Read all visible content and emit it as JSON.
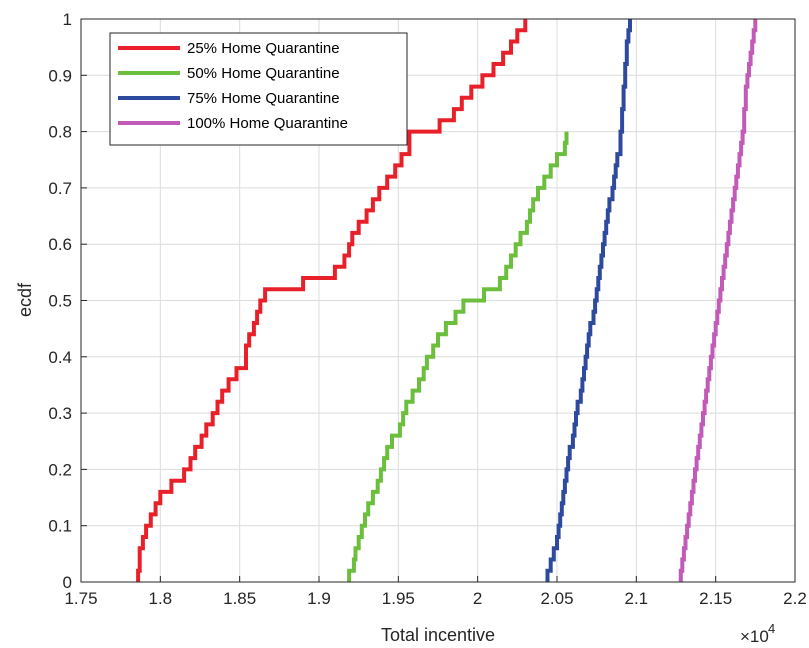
{
  "chart_data": {
    "type": "line",
    "step": true,
    "xlabel": "Total incentive",
    "ylabel": "ecdf",
    "x_exponent_label": "×10",
    "x_exponent_power": "4",
    "xlim": [
      1.75,
      2.2
    ],
    "ylim": [
      0,
      1
    ],
    "xticks": [
      1.75,
      1.8,
      1.85,
      1.9,
      1.95,
      2,
      2.05,
      2.1,
      2.15,
      2.2
    ],
    "xtick_labels": [
      "1.75",
      "1.8",
      "1.85",
      "1.9",
      "1.95",
      "2",
      "2.05",
      "2.1",
      "2.15",
      "2.2"
    ],
    "yticks": [
      0,
      0.1,
      0.2,
      0.3,
      0.4,
      0.5,
      0.6,
      0.7,
      0.8,
      0.9,
      1
    ],
    "ytick_labels": [
      "0",
      "0.1",
      "0.2",
      "0.3",
      "0.4",
      "0.5",
      "0.6",
      "0.7",
      "0.8",
      "0.9",
      "1"
    ],
    "grid": true,
    "legend_position": "top-left",
    "series": [
      {
        "name": "25% Home Quarantine",
        "color": "#e8202a",
        "x": [
          1.786,
          1.787,
          1.789,
          1.791,
          1.794,
          1.797,
          1.8,
          1.807,
          1.815,
          1.819,
          1.822,
          1.826,
          1.829,
          1.833,
          1.836,
          1.839,
          1.843,
          1.848,
          1.854,
          1.856,
          1.859,
          1.861,
          1.863,
          1.866,
          1.89,
          1.91,
          1.916,
          1.919,
          1.921,
          1.925,
          1.93,
          1.934,
          1.938,
          1.943,
          1.948,
          1.952,
          1.957,
          1.976,
          1.985,
          1.99,
          1.996,
          2.003,
          2.01,
          2.016,
          2.021,
          2.025,
          2.03
        ],
        "y": [
          0.02,
          0.06,
          0.08,
          0.1,
          0.12,
          0.14,
          0.16,
          0.18,
          0.2,
          0.22,
          0.24,
          0.26,
          0.28,
          0.3,
          0.32,
          0.34,
          0.36,
          0.38,
          0.42,
          0.44,
          0.46,
          0.48,
          0.5,
          0.52,
          0.54,
          0.56,
          0.58,
          0.6,
          0.62,
          0.64,
          0.66,
          0.68,
          0.7,
          0.72,
          0.74,
          0.76,
          0.8,
          0.82,
          0.84,
          0.86,
          0.88,
          0.9,
          0.92,
          0.94,
          0.96,
          0.98,
          1.0
        ]
      },
      {
        "name": "50% Home Quarantine",
        "color": "#6cbf3c",
        "x": [
          1.919,
          1.922,
          1.923,
          1.925,
          1.927,
          1.929,
          1.931,
          1.934,
          1.937,
          1.939,
          1.941,
          1.943,
          1.946,
          1.951,
          1.953,
          1.955,
          1.959,
          1.963,
          1.966,
          1.968,
          1.972,
          1.975,
          1.98,
          1.986,
          1.991,
          2.004,
          2.014,
          2.018,
          2.021,
          2.024,
          2.027,
          2.031,
          2.033,
          2.035,
          2.038,
          2.042,
          2.046,
          2.05,
          2.055,
          2.056
        ],
        "y": [
          0.02,
          0.04,
          0.06,
          0.08,
          0.1,
          0.12,
          0.14,
          0.16,
          0.18,
          0.2,
          0.22,
          0.24,
          0.26,
          0.28,
          0.3,
          0.32,
          0.34,
          0.36,
          0.38,
          0.4,
          0.42,
          0.44,
          0.46,
          0.48,
          0.5,
          0.52,
          0.54,
          0.56,
          0.58,
          0.6,
          0.62,
          0.64,
          0.66,
          0.68,
          0.7,
          0.72,
          0.74,
          0.76,
          0.78,
          0.8
        ]
      },
      {
        "name": "75% Home Quarantine",
        "color": "#2e4a9e",
        "x": [
          2.044,
          2.046,
          2.048,
          2.05,
          2.051,
          2.052,
          2.053,
          2.054,
          2.055,
          2.056,
          2.057,
          2.058,
          2.06,
          2.061,
          2.062,
          2.063,
          2.065,
          2.066,
          2.067,
          2.068,
          2.069,
          2.07,
          2.071,
          2.073,
          2.074,
          2.075,
          2.076,
          2.077,
          2.078,
          2.079,
          2.08,
          2.081,
          2.082,
          2.083,
          2.085,
          2.086,
          2.087,
          2.088,
          2.09,
          2.091,
          2.092,
          2.093,
          2.094,
          2.095,
          2.096
        ],
        "y": [
          0.02,
          0.04,
          0.06,
          0.08,
          0.1,
          0.12,
          0.14,
          0.16,
          0.18,
          0.2,
          0.22,
          0.24,
          0.26,
          0.28,
          0.3,
          0.32,
          0.34,
          0.36,
          0.38,
          0.4,
          0.42,
          0.44,
          0.46,
          0.48,
          0.5,
          0.52,
          0.54,
          0.56,
          0.58,
          0.6,
          0.62,
          0.64,
          0.66,
          0.68,
          0.7,
          0.72,
          0.74,
          0.76,
          0.8,
          0.84,
          0.88,
          0.92,
          0.96,
          0.98,
          1.0
        ]
      },
      {
        "name": "100% Home Quarantine",
        "color": "#c25ab8",
        "x": [
          2.128,
          2.129,
          2.13,
          2.131,
          2.132,
          2.133,
          2.134,
          2.135,
          2.136,
          2.137,
          2.138,
          2.139,
          2.14,
          2.141,
          2.142,
          2.143,
          2.144,
          2.145,
          2.146,
          2.147,
          2.148,
          2.149,
          2.15,
          2.151,
          2.152,
          2.153,
          2.154,
          2.155,
          2.156,
          2.157,
          2.158,
          2.159,
          2.16,
          2.161,
          2.162,
          2.163,
          2.164,
          2.165,
          2.166,
          2.167,
          2.168,
          2.169,
          2.17,
          2.171,
          2.172,
          2.173,
          2.174,
          2.175
        ],
        "y": [
          0.02,
          0.04,
          0.06,
          0.08,
          0.1,
          0.12,
          0.14,
          0.16,
          0.18,
          0.2,
          0.22,
          0.24,
          0.26,
          0.28,
          0.3,
          0.32,
          0.34,
          0.36,
          0.38,
          0.4,
          0.42,
          0.44,
          0.46,
          0.48,
          0.5,
          0.52,
          0.54,
          0.56,
          0.58,
          0.6,
          0.62,
          0.64,
          0.66,
          0.68,
          0.7,
          0.72,
          0.74,
          0.76,
          0.78,
          0.8,
          0.84,
          0.88,
          0.9,
          0.92,
          0.94,
          0.96,
          0.98,
          1.0
        ]
      }
    ]
  }
}
